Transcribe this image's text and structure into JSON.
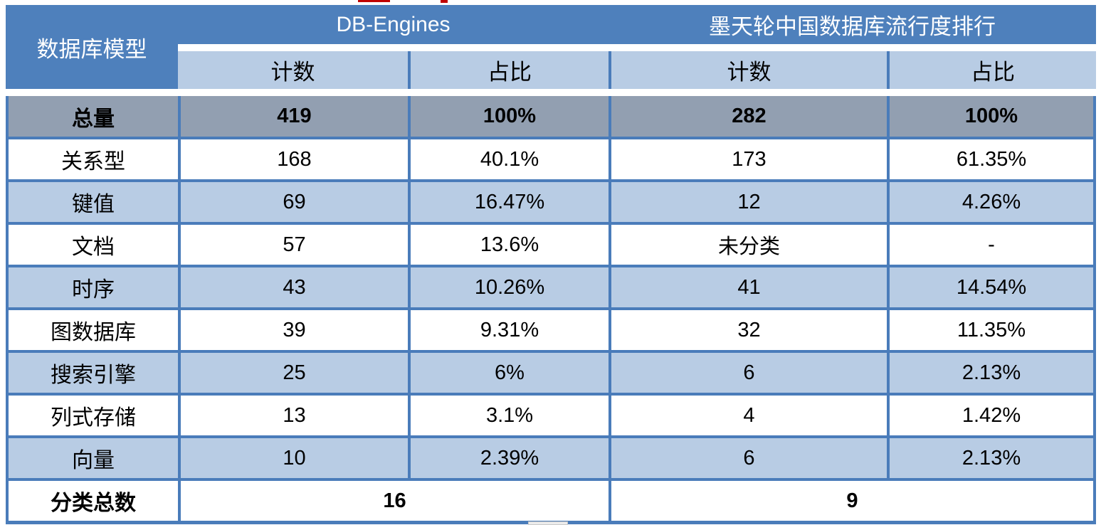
{
  "colors": {
    "header_blue": "#4E80BC",
    "grid_line_blue": "#4A7CBA",
    "subheader_light_blue": "#B8CCE4",
    "alt_row_light_blue": "#B8CCE4",
    "total_row_gray": "#929FB1",
    "header_text": "#FFFFFF",
    "body_text": "#000000",
    "stray_mark_red": "#C00000"
  },
  "table": {
    "corner_header": "数据库模型",
    "groups": [
      {
        "label": "DB-Engines",
        "subheaders": [
          "计数",
          "占比"
        ]
      },
      {
        "label": "墨天轮中国数据库流行度排行",
        "subheaders": [
          "计数",
          "占比"
        ]
      }
    ],
    "total_row": {
      "label": "总量",
      "cells": [
        "419",
        "100%",
        "282",
        "100%"
      ]
    },
    "rows": [
      {
        "label": "关系型",
        "cells": [
          "168",
          "40.1%",
          "173",
          "61.35%"
        ]
      },
      {
        "label": "键值",
        "cells": [
          "69",
          "16.47%",
          "12",
          "4.26%"
        ]
      },
      {
        "label": "文档",
        "cells": [
          "57",
          "13.6%",
          "未分类",
          "-"
        ]
      },
      {
        "label": "时序",
        "cells": [
          "43",
          "10.26%",
          "41",
          "14.54%"
        ]
      },
      {
        "label": "图数据库",
        "cells": [
          "39",
          "9.31%",
          "32",
          "11.35%"
        ]
      },
      {
        "label": "搜索引擎",
        "cells": [
          "25",
          "6%",
          "6",
          "2.13%"
        ]
      },
      {
        "label": "列式存储",
        "cells": [
          "13",
          "3.1%",
          "4",
          "1.42%"
        ]
      },
      {
        "label": "向量",
        "cells": [
          "10",
          "2.39%",
          "6",
          "2.13%"
        ]
      }
    ],
    "footer_row": {
      "label": "分类总数",
      "values": [
        "16",
        "9"
      ]
    }
  },
  "chart_data": {
    "type": "table",
    "title": "",
    "column_groups": [
      {
        "label": "DB-Engines",
        "span": [
          "计数",
          "占比"
        ]
      },
      {
        "label": "墨天轮中国数据库流行度排行",
        "span": [
          "计数",
          "占比"
        ]
      }
    ],
    "columns": [
      "数据库模型",
      "DB-Engines 计数",
      "DB-Engines 占比",
      "墨天轮中国数据库流行度排行 计数",
      "墨天轮中国数据库流行度排行 占比"
    ],
    "rows": [
      [
        "总量",
        "419",
        "100%",
        "282",
        "100%"
      ],
      [
        "关系型",
        "168",
        "40.1%",
        "173",
        "61.35%"
      ],
      [
        "键值",
        "69",
        "16.47%",
        "12",
        "4.26%"
      ],
      [
        "文档",
        "57",
        "13.6%",
        "未分类",
        "-"
      ],
      [
        "时序",
        "43",
        "10.26%",
        "41",
        "14.54%"
      ],
      [
        "图数据库",
        "39",
        "9.31%",
        "32",
        "11.35%"
      ],
      [
        "搜索引擎",
        "25",
        "6%",
        "6",
        "2.13%"
      ],
      [
        "列式存储",
        "13",
        "3.1%",
        "4",
        "1.42%"
      ],
      [
        "向量",
        "10",
        "2.39%",
        "6",
        "2.13%"
      ],
      [
        "分类总数",
        "16",
        "",
        "9",
        ""
      ]
    ]
  }
}
